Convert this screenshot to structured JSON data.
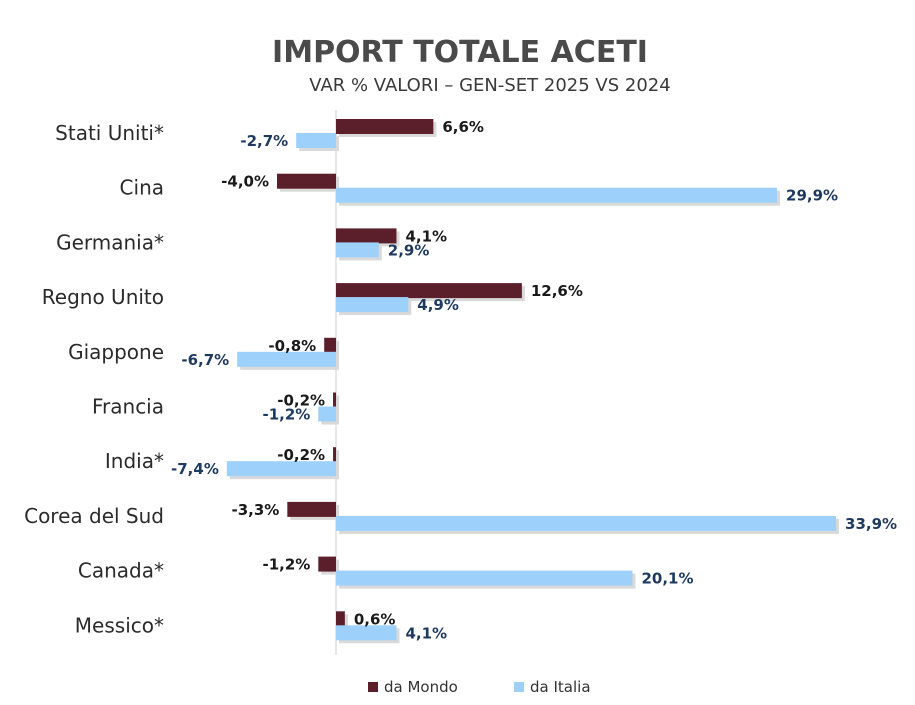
{
  "chart_data": {
    "type": "bar",
    "orientation": "horizontal",
    "title": "IMPORT TOTALE ACETI",
    "subtitle": "VAR % VALORI – GEN-SET 2025 VS 2024",
    "categories": [
      "Stati Uniti*",
      "Cina",
      "Germania*",
      "Regno Unito",
      "Giappone",
      "Francia",
      "India*",
      "Corea del Sud",
      "Canada*",
      "Messico*"
    ],
    "series": [
      {
        "name": "da Mondo",
        "color": "#5b1f2b",
        "label_color": "#1a1a1a",
        "values": [
          6.6,
          -4.0,
          4.1,
          12.6,
          -0.8,
          -0.2,
          -0.2,
          -3.3,
          -1.2,
          0.6
        ],
        "labels": [
          "6,6%",
          "-4,0%",
          "4,1%",
          "12,6%",
          "-0,8%",
          "-0,2%",
          "-0,2%",
          "-3,3%",
          "-1,2%",
          "0,6%"
        ]
      },
      {
        "name": "da Italia",
        "color": "#9dd0fb",
        "label_color": "#1f3a5f",
        "values": [
          -2.7,
          29.9,
          2.9,
          4.9,
          -6.7,
          -1.2,
          -7.4,
          33.9,
          20.1,
          4.1
        ],
        "labels": [
          "-2,7%",
          "29,9%",
          "2,9%",
          "4,9%",
          "-6,7%",
          "-1,2%",
          "-7,4%",
          "33,9%",
          "20,1%",
          "4,1%"
        ]
      }
    ],
    "legend": "bottom",
    "grid": false
  }
}
